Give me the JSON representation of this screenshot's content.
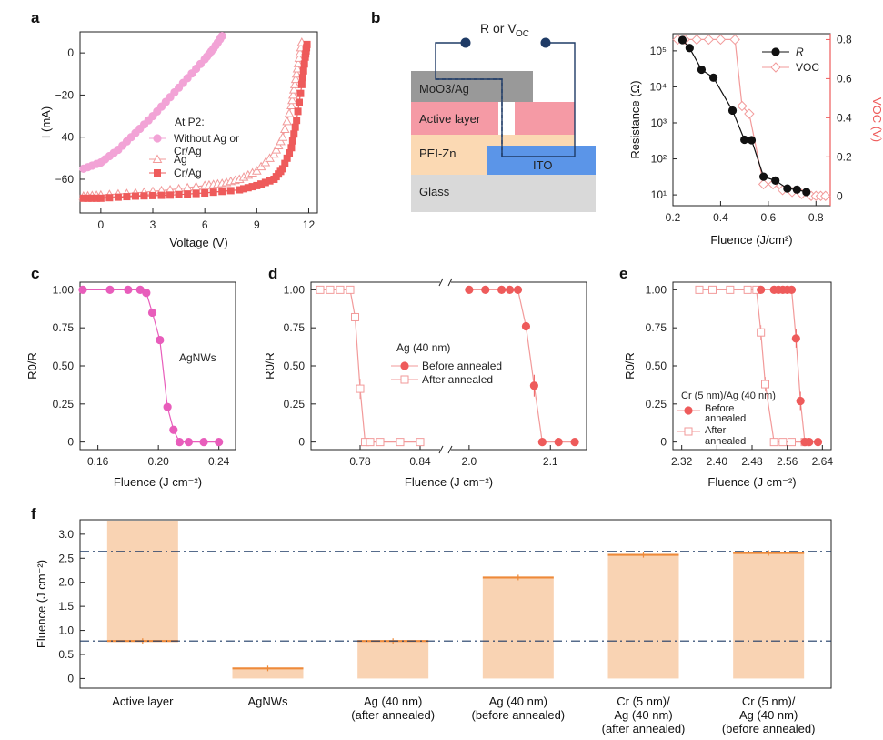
{
  "panels": {
    "a": {
      "letter": "a",
      "xlabel": "Voltage (V)",
      "ylabel": "I (mA)",
      "xticks": [
        "0",
        "3",
        "6",
        "9",
        "12"
      ],
      "yticks": [
        "0",
        "−20",
        "−40",
        "−60"
      ],
      "legend_title": "At P2:"
    },
    "b": {
      "letter": "b",
      "circuit_label": "R or V_OC",
      "layers": {
        "mo": "MoO3/Ag",
        "active": "Active layer",
        "pei": "PEI-Zn",
        "ito": "ITO",
        "glass": "Glass"
      },
      "xlabel": "Fluence (J/cm²)",
      "ylabel": "Resistance (Ω)",
      "y2label": "V_OC (V)",
      "xticks": [
        "0.2",
        "0.4",
        "0.6",
        "0.8"
      ],
      "yticks": [
        "10¹",
        "10²",
        "10³",
        "10⁴",
        "10⁵"
      ],
      "y2ticks": [
        "0",
        "0.2",
        "0.4",
        "0.6",
        "0.8"
      ]
    },
    "c": {
      "letter": "c",
      "xlabel": "Fluence (J cm⁻²)",
      "ylabel": "R0/R",
      "annotation": "AgNWs",
      "xticks": [
        "0.16",
        "0.20",
        "0.24"
      ],
      "yticks": [
        "0",
        "0.25",
        "0.50",
        "0.75",
        "1.00"
      ]
    },
    "d": {
      "letter": "d",
      "xlabel": "Fluence (J cm⁻²)",
      "ylabel": "R0/R",
      "legend_title": "Ag (40 nm)",
      "xticks": [
        "0.78",
        "0.84",
        "2.0",
        "2.1"
      ],
      "yticks": [
        "0",
        "0.25",
        "0.50",
        "0.75",
        "1.00"
      ]
    },
    "e": {
      "letter": "e",
      "xlabel": "Fluence (J cm⁻²)",
      "ylabel": "R0/R",
      "legend_title": "Cr (5 nm)/Ag (40 nm)",
      "xticks": [
        "2.32",
        "2.40",
        "2.48",
        "2.56",
        "2.64"
      ],
      "yticks": [
        "0",
        "0.25",
        "0.50",
        "0.75",
        "1.00"
      ]
    },
    "f": {
      "letter": "f",
      "ylabel": "Fluence (J cm⁻²)",
      "yticks": [
        "0",
        "0.5",
        "1.0",
        "1.5",
        "2.0",
        "2.5",
        "3.0"
      ],
      "categories": [
        "Active layer",
        "AgNWs",
        "Ag (40 nm)\n(after annealed)",
        "Ag (40 nm)\n(before annealed)",
        "Cr (5 nm)/\nAg (40 nm)\n(after annealed)",
        "Cr (5 nm)/\nAg (40 nm)\n(before annealed)"
      ]
    }
  },
  "colors": {
    "pink": "#f2a3d6",
    "pink_dark": "#e85dbb",
    "red": "#ee5b5b",
    "red_light": "#f29a9a",
    "black": "#111111",
    "bar": "#f9d3b3",
    "orange": "#ee8a3a",
    "navy": "#1f3b66",
    "ito": "#5b95e8"
  },
  "chart_data": [
    {
      "panel": "a",
      "type": "line",
      "xlim": [
        -1.2,
        12.5
      ],
      "ylim": [
        -76,
        10
      ],
      "series": [
        {
          "name": "Without Ag or Cr/Ag",
          "x": [
            -1,
            0,
            1,
            2,
            3,
            4,
            5,
            6,
            6.5,
            7
          ],
          "y": [
            -55,
            -52,
            -46,
            -38,
            -30,
            -21,
            -12,
            -3,
            2,
            8
          ]
        },
        {
          "name": "Ag",
          "x": [
            -1,
            0,
            2,
            4,
            6,
            7,
            8,
            9,
            10,
            10.5,
            11,
            11.2,
            11.4,
            11.6
          ],
          "y": [
            -68,
            -67.5,
            -66.5,
            -65,
            -63,
            -62,
            -60,
            -56,
            -48,
            -40,
            -25,
            -15,
            -5,
            5
          ]
        },
        {
          "name": "Cr/Ag",
          "x": [
            -1,
            0,
            2,
            4,
            6,
            8,
            9,
            10,
            10.5,
            11,
            11.3,
            11.6,
            11.8,
            11.9
          ],
          "y": [
            -69,
            -69,
            -68,
            -67.5,
            -66.5,
            -65,
            -63,
            -60,
            -55,
            -45,
            -32,
            -15,
            -2,
            4
          ]
        }
      ]
    },
    {
      "panel": "b",
      "type": "scatter",
      "xlim": [
        0.2,
        0.86
      ],
      "series": [
        {
          "name": "R",
          "axis": "left",
          "x": [
            0.24,
            0.27,
            0.32,
            0.37,
            0.45,
            0.5,
            0.53,
            0.58,
            0.63,
            0.68,
            0.72,
            0.76
          ],
          "y": [
            200000,
            120000,
            30000,
            18000,
            2200,
            340,
            330,
            32,
            25,
            15,
            14,
            12
          ]
        },
        {
          "name": "V_OC",
          "axis": "right",
          "x": [
            0.22,
            0.25,
            0.3,
            0.35,
            0.4,
            0.46,
            0.49,
            0.52,
            0.58,
            0.62,
            0.66,
            0.7,
            0.74,
            0.78,
            0.8,
            0.82,
            0.84
          ],
          "y": [
            0.8,
            0.8,
            0.8,
            0.8,
            0.8,
            0.8,
            0.46,
            0.42,
            0.06,
            0.06,
            0.03,
            0.02,
            0.01,
            0.0,
            0.0,
            0.0,
            0.0
          ]
        }
      ]
    },
    {
      "panel": "c",
      "type": "scatter",
      "series_label": "AgNWs",
      "xlim": [
        0.15,
        0.245
      ],
      "ylim": [
        -0.05,
        1.05
      ],
      "x": [
        0.15,
        0.168,
        0.18,
        0.188,
        0.192,
        0.196,
        0.201,
        0.206,
        0.21,
        0.214,
        0.22,
        0.23,
        0.24
      ],
      "y": [
        1.0,
        1.0,
        1.0,
        1.0,
        0.98,
        0.85,
        0.67,
        0.23,
        0.08,
        0.0,
        0.0,
        0.0,
        0.0
      ]
    },
    {
      "panel": "d",
      "type": "scatter",
      "series": [
        {
          "name": "Before annealed",
          "x": [
            2.0,
            2.02,
            2.04,
            2.05,
            2.06,
            2.07,
            2.08,
            2.09,
            2.11,
            2.13
          ],
          "y": [
            1.0,
            1.0,
            1.0,
            1.0,
            1.0,
            0.76,
            0.37,
            0.0,
            0.0,
            0.0
          ]
        },
        {
          "name": "After annealed",
          "x": [
            0.74,
            0.75,
            0.76,
            0.77,
            0.775,
            0.78,
            0.785,
            0.79,
            0.8,
            0.82,
            0.84
          ],
          "y": [
            1.0,
            1.0,
            1.0,
            1.0,
            0.82,
            0.35,
            0.0,
            0.0,
            0.0,
            0.0,
            0.0
          ]
        }
      ]
    },
    {
      "panel": "e",
      "type": "scatter",
      "xlim": [
        2.3,
        2.66
      ],
      "ylim": [
        -0.05,
        1.05
      ],
      "series": [
        {
          "name": "Before",
          "x": [
            2.5,
            2.53,
            2.54,
            2.55,
            2.56,
            2.57,
            2.58,
            2.59,
            2.6,
            2.61,
            2.63
          ],
          "y": [
            1.0,
            1.0,
            1.0,
            1.0,
            1.0,
            1.0,
            0.68,
            0.27,
            0.0,
            0.0,
            0.0
          ]
        },
        {
          "name": "After",
          "x": [
            2.36,
            2.39,
            2.43,
            2.47,
            2.49,
            2.5,
            2.51,
            2.53,
            2.55,
            2.57,
            2.6
          ],
          "y": [
            1.0,
            1.0,
            1.0,
            1.0,
            1.0,
            0.72,
            0.38,
            0.0,
            0.0,
            0.0,
            0.0
          ]
        }
      ]
    },
    {
      "panel": "f",
      "type": "bar",
      "ylim": [
        -0.2,
        3.3
      ],
      "categories": [
        "Active layer",
        "AgNWs",
        "Ag (40 nm) (after annealed)",
        "Ag (40 nm) (before annealed)",
        "Cr (5 nm)/Ag (40 nm) (after annealed)",
        "Cr (5 nm)/Ag (40 nm) (before annealed)"
      ],
      "bar_bottom": [
        0.78,
        0,
        0,
        0,
        0,
        0
      ],
      "bar_top": [
        3.3,
        0.21,
        0.78,
        2.1,
        2.57,
        2.61
      ],
      "threshold": [
        0.78,
        0.21,
        0.78,
        2.1,
        2.57,
        2.61
      ],
      "hlines": [
        0.78,
        2.64
      ]
    }
  ]
}
